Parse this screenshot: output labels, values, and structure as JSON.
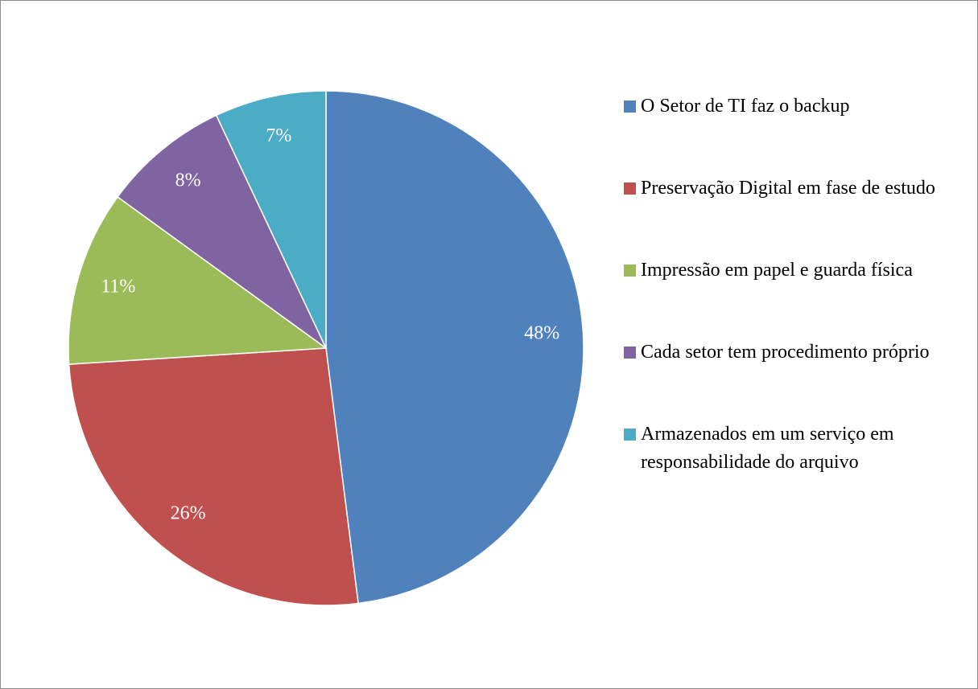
{
  "chart_data": {
    "type": "pie",
    "categories": [
      "O Setor de TI faz o backup",
      "Preservação Digital em fase de estudo",
      "Impressão em papel e guarda física",
      "Cada setor tem procedimento próprio",
      "Armazenados em um serviço em responsabilidade do arquivo"
    ],
    "values": [
      48,
      26,
      11,
      8,
      7
    ],
    "value_labels": [
      "48%",
      "26%",
      "11%",
      "8%",
      "7%"
    ],
    "colors": [
      "#4f81bd",
      "#c0504d",
      "#9bbb59",
      "#8064a2",
      "#4bacc6"
    ],
    "legend": "right"
  }
}
